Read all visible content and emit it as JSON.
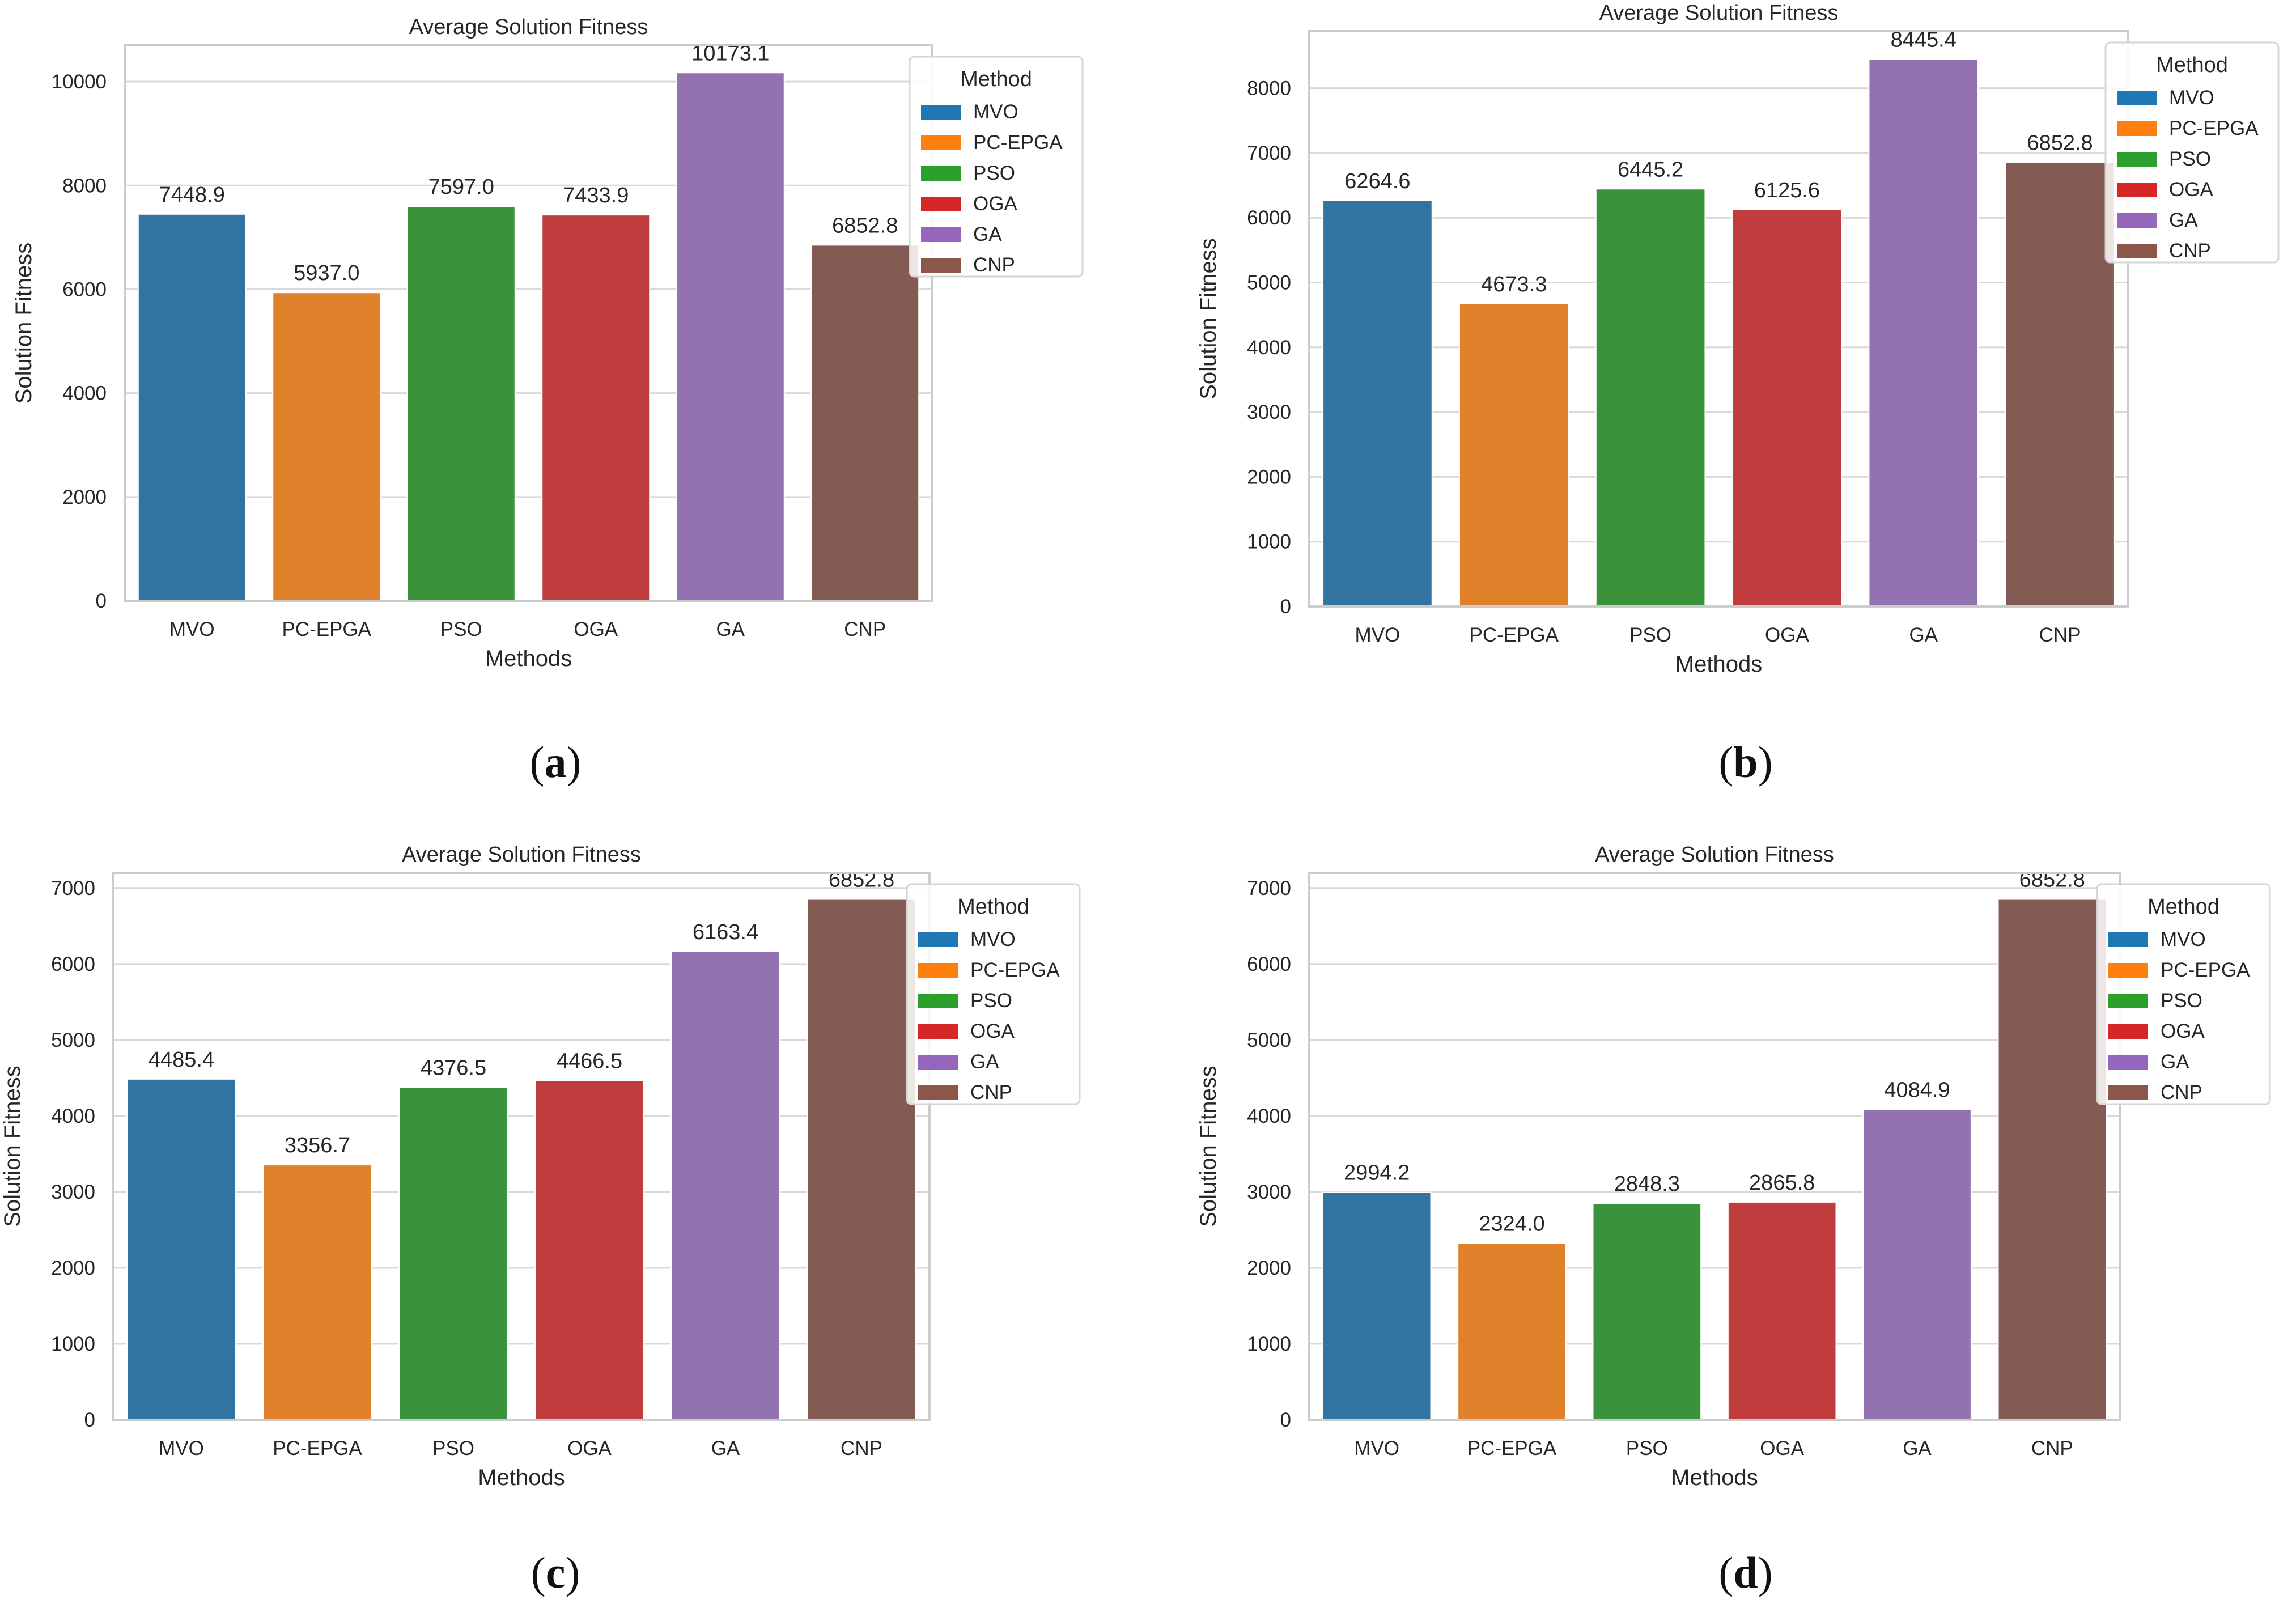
{
  "figure": {
    "panels": [
      {
        "label": "a"
      },
      {
        "label": "b"
      },
      {
        "label": "c"
      },
      {
        "label": "d"
      }
    ]
  },
  "colors": {
    "MVO": "#3274a1",
    "PC-EPGA": "#e1812c",
    "PSO": "#3a923a",
    "OGA": "#c03d3e",
    "GA": "#9372b2",
    "CNP": "#845b53",
    "legend_MVO": "#1f77b4",
    "legend_PC-EPGA": "#ff7f0e",
    "legend_PSO": "#2ca02c",
    "legend_OGA": "#d62728",
    "legend_GA": "#9467bd",
    "legend_CNP": "#8c564b",
    "grid": "#d9d9d9",
    "spine": "#cccccc"
  },
  "chart_data": [
    {
      "type": "bar",
      "title": "Average Solution Fitness",
      "xlabel": "Methods",
      "ylabel": "Solution Fitness",
      "categories": [
        "MVO",
        "PC-EPGA",
        "PSO",
        "OGA",
        "GA",
        "CNP"
      ],
      "values": [
        7448.9,
        5937.0,
        7597.0,
        7433.9,
        10173.1,
        6852.8
      ],
      "value_labels": [
        "7448.9",
        "5937.0",
        "7597.0",
        "7433.9",
        "10173.1",
        "6852.8"
      ],
      "ylim": [
        0,
        10700
      ],
      "yticks": [
        0,
        2000,
        4000,
        6000,
        8000,
        10000
      ],
      "grid": true,
      "legend": {
        "title": "Method",
        "entries": [
          "MVO",
          "PC-EPGA",
          "PSO",
          "OGA",
          "GA",
          "CNP"
        ],
        "placement": "top-right"
      }
    },
    {
      "type": "bar",
      "title": "Average Solution Fitness",
      "xlabel": "Methods",
      "ylabel": "Solution Fitness",
      "categories": [
        "MVO",
        "PC-EPGA",
        "PSO",
        "OGA",
        "GA",
        "CNP"
      ],
      "values": [
        6264.6,
        4673.3,
        6445.2,
        6125.6,
        8445.4,
        6852.8
      ],
      "value_labels": [
        "6264.6",
        "4673.3",
        "6445.2",
        "6125.6",
        "8445.4",
        "6852.8"
      ],
      "ylim": [
        0,
        8880
      ],
      "yticks": [
        0,
        1000,
        2000,
        3000,
        4000,
        5000,
        6000,
        7000,
        8000
      ],
      "grid": true,
      "legend": {
        "title": "Method",
        "entries": [
          "MVO",
          "PC-EPGA",
          "PSO",
          "OGA",
          "GA",
          "CNP"
        ],
        "placement": "top-right"
      }
    },
    {
      "type": "bar",
      "title": "Average Solution Fitness",
      "xlabel": "Methods",
      "ylabel": "Solution Fitness",
      "categories": [
        "MVO",
        "PC-EPGA",
        "PSO",
        "OGA",
        "GA",
        "CNP"
      ],
      "values": [
        4485.4,
        3356.7,
        4376.5,
        4466.5,
        6163.4,
        6852.8
      ],
      "value_labels": [
        "4485.4",
        "3356.7",
        "4376.5",
        "4466.5",
        "6163.4",
        "6852.8"
      ],
      "ylim": [
        0,
        7200
      ],
      "yticks": [
        0,
        1000,
        2000,
        3000,
        4000,
        5000,
        6000,
        7000
      ],
      "grid": true,
      "legend": {
        "title": "Method",
        "entries": [
          "MVO",
          "PC-EPGA",
          "PSO",
          "OGA",
          "GA",
          "CNP"
        ],
        "placement": "top-right"
      }
    },
    {
      "type": "bar",
      "title": "Average Solution Fitness",
      "xlabel": "Methods",
      "ylabel": "Solution Fitness",
      "categories": [
        "MVO",
        "PC-EPGA",
        "PSO",
        "OGA",
        "GA",
        "CNP"
      ],
      "values": [
        2994.2,
        2324.0,
        2848.3,
        2865.8,
        4084.9,
        6852.8
      ],
      "value_labels": [
        "2994.2",
        "2324.0",
        "2848.3",
        "2865.8",
        "4084.9",
        "6852.8"
      ],
      "ylim": [
        0,
        7200
      ],
      "yticks": [
        0,
        1000,
        2000,
        3000,
        4000,
        5000,
        6000,
        7000
      ],
      "grid": true,
      "legend": {
        "title": "Method",
        "entries": [
          "MVO",
          "PC-EPGA",
          "PSO",
          "OGA",
          "GA",
          "CNP"
        ],
        "placement": "top-right"
      }
    }
  ]
}
